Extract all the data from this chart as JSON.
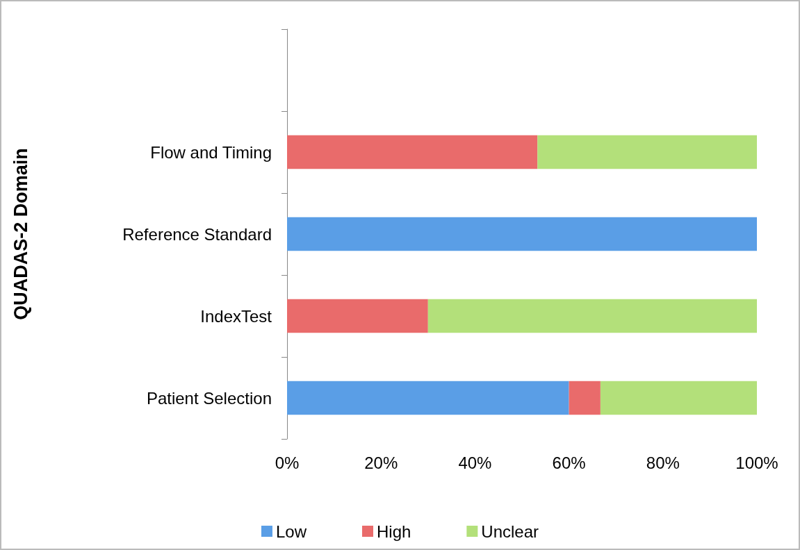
{
  "chart_data": {
    "type": "bar",
    "orientation": "horizontal",
    "stacked": true,
    "ylabel": "QUADAS-2 Domain",
    "categories": [
      null,
      "Flow and Timing",
      "Reference Standard",
      "IndexTest",
      "Patient Selection"
    ],
    "series": [
      {
        "name": "Low",
        "color": "#5a9ee6",
        "values": [
          null,
          0,
          100,
          0,
          60
        ]
      },
      {
        "name": "High",
        "color": "#e96b6b",
        "values": [
          null,
          53.3,
          0,
          30,
          6.7
        ]
      },
      {
        "name": "Unclear",
        "color": "#b3e07a",
        "values": [
          null,
          46.7,
          0,
          70,
          33.3
        ]
      }
    ],
    "xlim": [
      0,
      100
    ],
    "xticks": [
      {
        "value": 0,
        "label": "0%"
      },
      {
        "value": 20,
        "label": "20%"
      },
      {
        "value": 40,
        "label": "40%"
      },
      {
        "value": 60,
        "label": "60%"
      },
      {
        "value": 80,
        "label": "80%"
      },
      {
        "value": 100,
        "label": "100%"
      }
    ],
    "grid": false,
    "legend": "bottom"
  }
}
